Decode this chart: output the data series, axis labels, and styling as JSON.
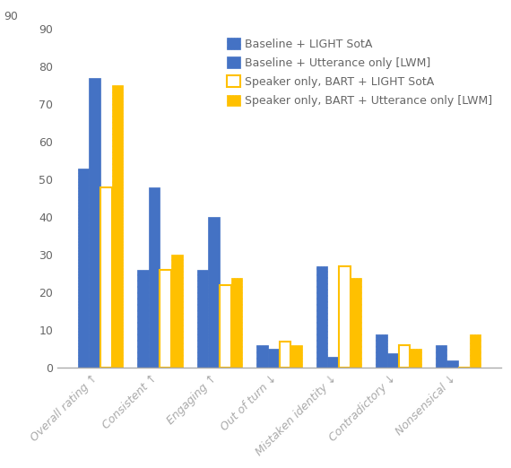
{
  "categories": [
    "Overall rating ↑",
    "Consistent ↑",
    "Engaging ↑",
    "Out of turn ↓",
    "Mistaken identity ↓",
    "Contradictory ↓",
    "Nonsensical ↓"
  ],
  "series": [
    {
      "label": "Baseline + LIGHT SotA",
      "values": [
        53,
        26,
        26,
        6,
        27,
        9,
        6
      ],
      "facecolor": "#4472C4",
      "edgecolor": "#ffffff",
      "hatch": ".....",
      "is_outline": false,
      "is_dotted": true
    },
    {
      "label": "Baseline + Utterance only [LWM]",
      "values": [
        77,
        48,
        40,
        5,
        3,
        4,
        2
      ],
      "facecolor": "#4472C4",
      "edgecolor": "#4472C4",
      "hatch": "",
      "is_outline": false,
      "is_dotted": false
    },
    {
      "label": "Speaker only, BART + LIGHT SotA",
      "values": [
        48,
        26,
        22,
        7,
        27,
        6,
        0
      ],
      "facecolor": "#ffffff",
      "edgecolor": "#FFC000",
      "hatch": "",
      "is_outline": true,
      "is_dotted": false
    },
    {
      "label": "Speaker only, BART + Utterance only [LWM]",
      "values": [
        75,
        30,
        24,
        6,
        24,
        5,
        9
      ],
      "facecolor": "#FFC000",
      "edgecolor": "#FFC000",
      "hatch": ".....",
      "is_outline": false,
      "is_dotted": true
    }
  ],
  "ylim": [
    0,
    90
  ],
  "yticks": [
    0,
    10,
    20,
    30,
    40,
    50,
    60,
    70,
    80,
    90
  ],
  "bar_width": 0.19,
  "legend_fontsize": 9,
  "tick_fontsize": 9,
  "xlabel_fontsize": 9
}
